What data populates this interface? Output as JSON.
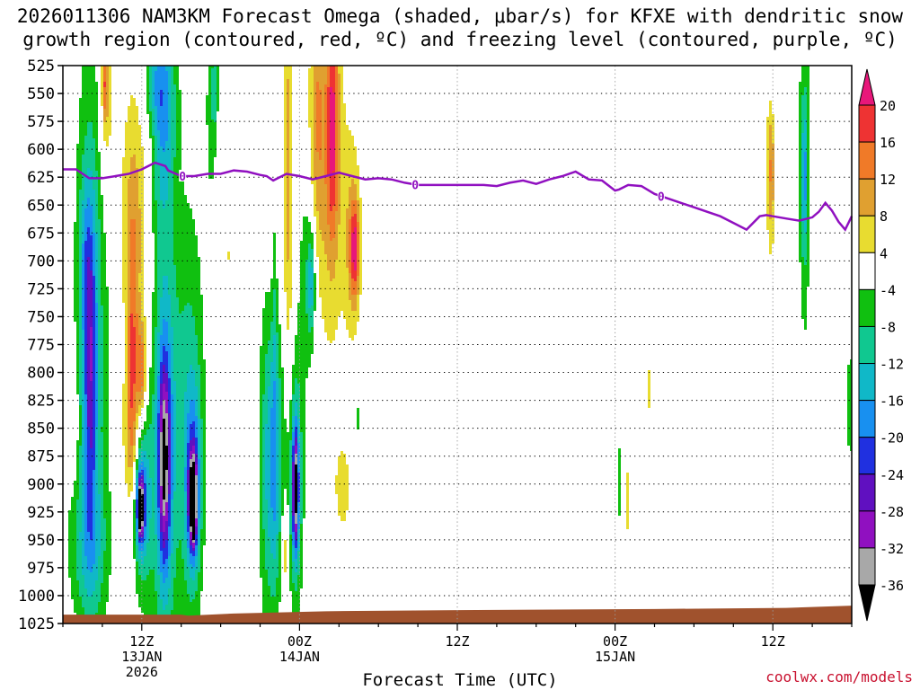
{
  "chart_data": {
    "type": "heatmap",
    "title_line1": "2026011306 NAM3KM Forecast Omega (shaded, μbar/s) for KFXE with dendritic snow",
    "title_line2": "growth region (contoured, red, ºC) and freezing level (contoured, purple, ºC)",
    "xlabel": "Forecast Time (UTC)",
    "ylabel": "",
    "credit": "coolwx.com/models",
    "x_range_hours": [
      0,
      60
    ],
    "y_levels": [
      "525",
      "550",
      "575",
      "600",
      "625",
      "650",
      "675",
      "700",
      "725",
      "750",
      "775",
      "800",
      "825",
      "850",
      "875",
      "900",
      "925",
      "950",
      "975",
      "1000",
      "1025"
    ],
    "x_ticks": [
      {
        "hour": 6,
        "line1": "12Z",
        "line2": "13JAN",
        "line3": "2026"
      },
      {
        "hour": 18,
        "line1": "00Z",
        "line2": "14JAN",
        "line3": ""
      },
      {
        "hour": 30,
        "line1": "12Z",
        "line2": "",
        "line3": ""
      },
      {
        "hour": 42,
        "line1": "00Z",
        "line2": "15JAN",
        "line3": ""
      },
      {
        "hour": 54,
        "line1": "12Z",
        "line2": "",
        "line3": ""
      }
    ],
    "colorbar": {
      "labels": [
        "20",
        "16",
        "12",
        "8",
        "4",
        "-4",
        "-8",
        "-12",
        "-16",
        "-20",
        "-24",
        "-28",
        "-32",
        "-36"
      ],
      "colors": [
        "#e8177a",
        "#ee3333",
        "#f07a28",
        "#e0a030",
        "#e8dc30",
        "#ffffff",
        "#10c010",
        "#10c890",
        "#10b8c8",
        "#1890f0",
        "#2030e0",
        "#6010c0",
        "#9010c0",
        "#a8a8a8",
        "#000000"
      ]
    },
    "freezing_level": {
      "label": "0",
      "color": "#9010c0",
      "x": [
        0,
        1,
        2,
        3,
        4,
        5,
        6,
        7,
        7.8,
        8,
        9,
        10,
        11,
        12,
        13,
        14,
        15,
        15.5,
        16,
        17,
        18,
        19,
        20,
        21,
        22,
        23,
        24,
        25,
        26,
        27,
        28,
        29,
        30,
        31,
        32,
        33,
        34,
        35,
        36,
        37,
        38,
        39,
        40,
        41,
        42,
        42.3,
        43,
        44,
        45,
        46,
        47,
        48,
        49,
        50,
        51,
        52,
        53,
        53.5,
        54,
        55,
        56,
        57,
        57.5,
        58,
        58.5,
        59,
        59.5,
        60
      ],
      "y": [
        618,
        618,
        626,
        626,
        624,
        622,
        618,
        612,
        615,
        619,
        624,
        624,
        622,
        622,
        619,
        620,
        623,
        624,
        628,
        622,
        624,
        627,
        624,
        621,
        624,
        627,
        626,
        627,
        630,
        632,
        632,
        632,
        632,
        632,
        632,
        633,
        630,
        628,
        631,
        627,
        624,
        620,
        627,
        628,
        637,
        636,
        632,
        633,
        640,
        644,
        648,
        652,
        656,
        660,
        666,
        672,
        660,
        659,
        660,
        662,
        664,
        661,
        656,
        648,
        655,
        665,
        672,
        660
      ]
    },
    "omega_features": [
      {
        "x": 2.2,
        "p": 770,
        "sx": 0.9,
        "sy": 200,
        "v": -11
      },
      {
        "x": 2.1,
        "p": 800,
        "sx": 0.35,
        "sy": 95,
        "v": -17
      },
      {
        "x": 1.7,
        "p": 700,
        "sx": 0.35,
        "sy": 55,
        "v": -7
      },
      {
        "x": 1.9,
        "p": 955,
        "sx": 1.1,
        "sy": 45,
        "v": -8
      },
      {
        "x": 5.6,
        "p": 660,
        "sx": 0.9,
        "sy": 90,
        "v": 9
      },
      {
        "x": 5.3,
        "p": 800,
        "sx": 0.3,
        "sy": 90,
        "v": 13
      },
      {
        "x": 5.1,
        "p": 860,
        "sx": 0.5,
        "sy": 50,
        "v": 6
      },
      {
        "x": 6.0,
        "p": 800,
        "sx": 0.25,
        "sy": 30,
        "v": 15
      },
      {
        "x": 3.3,
        "p": 560,
        "sx": 0.4,
        "sy": 60,
        "v": 8
      },
      {
        "x": 3.2,
        "p": 540,
        "sx": 0.15,
        "sy": 25,
        "v": 12
      },
      {
        "x": 6.9,
        "p": 600,
        "sx": 0.5,
        "sy": 25,
        "v": 5
      },
      {
        "x": 0.8,
        "p": 840,
        "sx": 0.25,
        "sy": 40,
        "v": 5
      },
      {
        "x": 7.6,
        "p": 720,
        "sx": 0.9,
        "sy": 330,
        "v": -7
      },
      {
        "x": 7.4,
        "p": 560,
        "sx": 0.7,
        "sy": 60,
        "v": -15
      },
      {
        "x": 7.8,
        "p": 870,
        "sx": 0.55,
        "sy": 110,
        "v": -12
      },
      {
        "x": 7.7,
        "p": 880,
        "sx": 0.3,
        "sy": 60,
        "v": -22
      },
      {
        "x": 9.7,
        "p": 840,
        "sx": 0.8,
        "sy": 130,
        "v": -10
      },
      {
        "x": 9.9,
        "p": 905,
        "sx": 0.4,
        "sy": 55,
        "v": -18
      },
      {
        "x": 9.9,
        "p": 915,
        "sx": 0.2,
        "sy": 25,
        "v": -30
      },
      {
        "x": 9.9,
        "p": 930,
        "sx": 0.06,
        "sy": 12,
        "v": -34
      },
      {
        "x": 6.0,
        "p": 915,
        "sx": 0.55,
        "sy": 55,
        "v": -16
      },
      {
        "x": 5.9,
        "p": 920,
        "sx": 0.22,
        "sy": 22,
        "v": -25
      },
      {
        "x": 5.9,
        "p": 925,
        "sx": 0.08,
        "sy": 10,
        "v": -30
      },
      {
        "x": 11.3,
        "p": 560,
        "sx": 0.3,
        "sy": 60,
        "v": -7
      },
      {
        "x": 12.7,
        "p": 695,
        "sx": 0.15,
        "sy": 15,
        "v": 5
      },
      {
        "x": 16.0,
        "p": 590,
        "sx": 0.25,
        "sy": 90,
        "v": 6
      },
      {
        "x": 15.6,
        "p": 880,
        "sx": 0.55,
        "sy": 110,
        "v": -9
      },
      {
        "x": 16.2,
        "p": 880,
        "sx": 0.5,
        "sy": 85,
        "v": -11
      },
      {
        "x": 17.7,
        "p": 900,
        "sx": 0.4,
        "sy": 75,
        "v": -16
      },
      {
        "x": 17.7,
        "p": 905,
        "sx": 0.15,
        "sy": 35,
        "v": -26
      },
      {
        "x": 16.1,
        "p": 650,
        "sx": 0.15,
        "sy": 180,
        "v": -6
      },
      {
        "x": 17.0,
        "p": 610,
        "sx": 0.3,
        "sy": 100,
        "v": 5
      },
      {
        "x": 17.2,
        "p": 650,
        "sx": 0.25,
        "sy": 160,
        "v": 6
      },
      {
        "x": 16.9,
        "p": 960,
        "sx": 0.2,
        "sy": 30,
        "v": 9
      },
      {
        "x": 18.6,
        "p": 720,
        "sx": 0.5,
        "sy": 70,
        "v": -7
      },
      {
        "x": 18.9,
        "p": 720,
        "sx": 0.2,
        "sy": 30,
        "v": -11
      },
      {
        "x": 19.5,
        "p": 580,
        "sx": 0.35,
        "sy": 110,
        "v": 6
      },
      {
        "x": 19.1,
        "p": 570,
        "sx": 0.35,
        "sy": 70,
        "v": 6
      },
      {
        "x": 20.4,
        "p": 600,
        "sx": 0.7,
        "sy": 130,
        "v": 9
      },
      {
        "x": 20.5,
        "p": 580,
        "sx": 0.3,
        "sy": 70,
        "v": 14
      },
      {
        "x": 22.0,
        "p": 680,
        "sx": 0.5,
        "sy": 70,
        "v": 8
      },
      {
        "x": 22.2,
        "p": 690,
        "sx": 0.25,
        "sy": 30,
        "v": 16
      },
      {
        "x": 21.3,
        "p": 905,
        "sx": 0.6,
        "sy": 40,
        "v": 5
      },
      {
        "x": 22.5,
        "p": 840,
        "sx": 0.15,
        "sy": 15,
        "v": -7
      },
      {
        "x": 22.7,
        "p": 830,
        "sx": 0.15,
        "sy": 12,
        "v": 5
      },
      {
        "x": 11.6,
        "p": 540,
        "sx": 0.15,
        "sy": 30,
        "v": -7
      },
      {
        "x": 24.0,
        "p": 532,
        "sx": 0.12,
        "sy": 15,
        "v": -5
      },
      {
        "x": 42.3,
        "p": 898,
        "sx": 0.12,
        "sy": 30,
        "v": -7
      },
      {
        "x": 43.0,
        "p": 915,
        "sx": 0.15,
        "sy": 45,
        "v": 5
      },
      {
        "x": 44.6,
        "p": 815,
        "sx": 0.2,
        "sy": 25,
        "v": 5
      },
      {
        "x": 53.8,
        "p": 620,
        "sx": 0.35,
        "sy": 70,
        "v": 6
      },
      {
        "x": 53.9,
        "p": 620,
        "sx": 0.1,
        "sy": 35,
        "v": 9
      },
      {
        "x": 54.1,
        "p": 535,
        "sx": 0.2,
        "sy": 20,
        "v": -6
      },
      {
        "x": 56.4,
        "p": 620,
        "sx": 0.35,
        "sy": 140,
        "v": -7
      },
      {
        "x": 56.4,
        "p": 625,
        "sx": 0.15,
        "sy": 45,
        "v": -12
      },
      {
        "x": 56.2,
        "p": 895,
        "sx": 0.2,
        "sy": 65,
        "v": 5
      },
      {
        "x": 59.9,
        "p": 830,
        "sx": 0.25,
        "sy": 40,
        "v": -7
      }
    ],
    "terrain_color": "#a0522d"
  }
}
